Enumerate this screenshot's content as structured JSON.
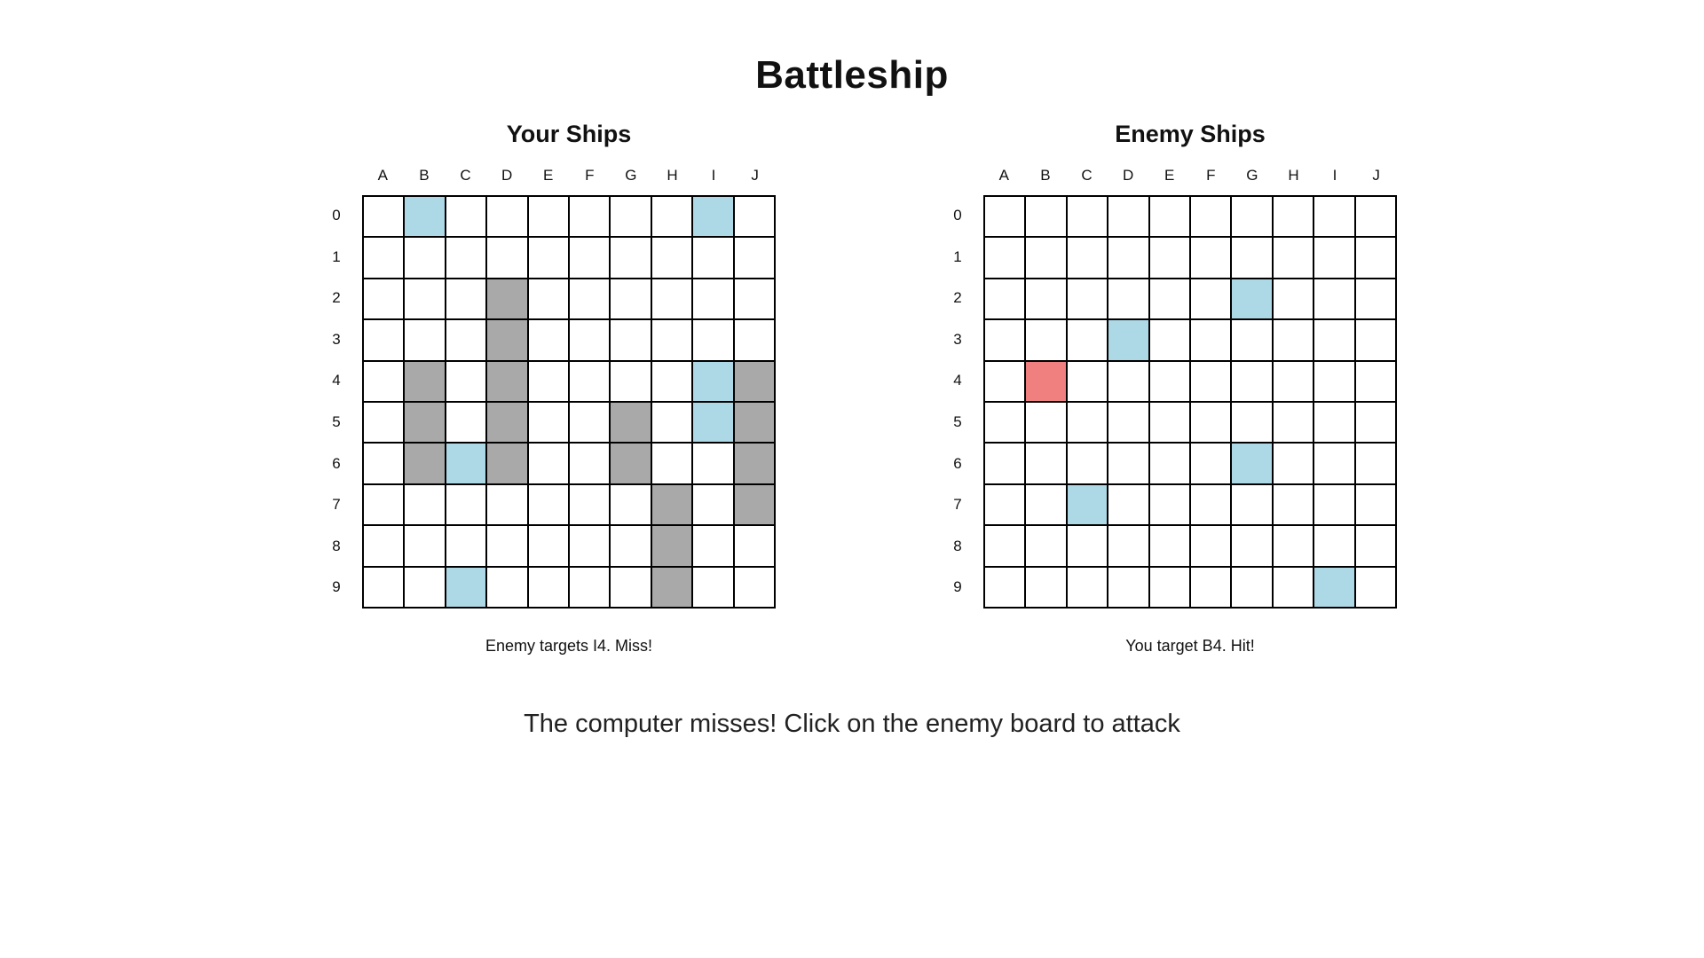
{
  "title": "Battleship",
  "columns": [
    "A",
    "B",
    "C",
    "D",
    "E",
    "F",
    "G",
    "H",
    "I",
    "J"
  ],
  "rows": [
    "0",
    "1",
    "2",
    "3",
    "4",
    "5",
    "6",
    "7",
    "8",
    "9"
  ],
  "colors": {
    "empty": "#ffffff",
    "ship": "#a9a9a9",
    "miss": "#add8e6",
    "hit": "#f08080",
    "grid_line": "#000000"
  },
  "player_board": {
    "title": "Your Ships",
    "message": "Enemy targets I4. Miss!",
    "cells": [
      "0B:miss",
      "0I:miss",
      "2D:ship",
      "3D:ship",
      "4B:ship",
      "4D:ship",
      "4I:miss",
      "4J:ship",
      "5B:ship",
      "5D:ship",
      "5G:ship",
      "5I:miss",
      "5J:ship",
      "6B:ship",
      "6C:miss",
      "6D:ship",
      "6G:ship",
      "6J:ship",
      "7H:ship",
      "7J:ship",
      "8H:ship",
      "9C:miss",
      "9H:ship"
    ]
  },
  "enemy_board": {
    "title": "Enemy Ships",
    "message": "You target B4. Hit!",
    "cells": [
      "2G:miss",
      "3D:miss",
      "4B:hit",
      "6G:miss",
      "7C:miss",
      "9I:miss"
    ]
  },
  "status": "The computer misses! Click on the enemy board to attack"
}
